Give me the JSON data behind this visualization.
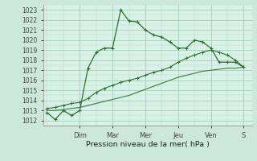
{
  "bg_color": "#cce8dc",
  "plot_bg": "#d8f2e8",
  "grid_color": "#aad4be",
  "line_color1": "#2d6e2d",
  "line_color2": "#2d6e2d",
  "line_color3": "#3a7a3a",
  "title": "Pression niveau de la mer( hPa )",
  "x_ticks_labels": [
    "Dim",
    "Mar",
    "Mer",
    "Jeu",
    "Ven",
    "S"
  ],
  "x_ticks_pos": [
    2.0,
    4.0,
    6.0,
    8.0,
    10.0,
    12.0
  ],
  "ylabel_values": [
    1012,
    1013,
    1014,
    1015,
    1016,
    1017,
    1018,
    1019,
    1020,
    1021,
    1022,
    1023
  ],
  "series1_x": [
    0.0,
    0.5,
    1.0,
    1.5,
    2.0,
    2.5,
    3.0,
    3.5,
    4.0,
    4.5,
    5.0,
    5.5,
    6.0,
    6.5,
    7.0,
    7.5,
    8.0,
    8.5,
    9.0,
    9.5,
    10.0,
    10.5,
    11.0,
    11.5,
    12.0
  ],
  "series1_y": [
    1012.8,
    1012.1,
    1013.0,
    1012.5,
    1013.0,
    1017.2,
    1018.8,
    1019.2,
    1019.2,
    1023.0,
    1021.9,
    1021.8,
    1021.0,
    1020.5,
    1020.3,
    1019.8,
    1019.2,
    1019.2,
    1020.0,
    1019.8,
    1019.2,
    1017.8,
    1017.8,
    1017.8,
    1017.3
  ],
  "series2_x": [
    0.0,
    0.5,
    1.0,
    1.5,
    2.0,
    2.5,
    3.0,
    3.5,
    4.0,
    4.5,
    5.0,
    5.5,
    6.0,
    6.5,
    7.0,
    7.5,
    8.0,
    8.5,
    9.0,
    9.5,
    10.0,
    10.5,
    11.0,
    11.5,
    12.0
  ],
  "series2_y": [
    1013.2,
    1013.3,
    1013.5,
    1013.7,
    1013.8,
    1014.2,
    1014.8,
    1015.2,
    1015.5,
    1015.8,
    1016.0,
    1016.2,
    1016.5,
    1016.8,
    1017.0,
    1017.3,
    1017.8,
    1018.2,
    1018.5,
    1018.8,
    1019.0,
    1018.8,
    1018.5,
    1018.0,
    1017.3
  ],
  "series3_x": [
    0.0,
    0.5,
    1.0,
    1.5,
    2.0,
    2.5,
    3.0,
    3.5,
    4.0,
    4.5,
    5.0,
    5.5,
    6.0,
    6.5,
    7.0,
    7.5,
    8.0,
    8.5,
    9.0,
    9.5,
    10.0,
    10.5,
    11.0,
    11.5,
    12.0
  ],
  "series3_y": [
    1013.0,
    1013.0,
    1013.1,
    1013.2,
    1013.3,
    1013.5,
    1013.7,
    1013.9,
    1014.1,
    1014.3,
    1014.5,
    1014.8,
    1015.1,
    1015.4,
    1015.7,
    1016.0,
    1016.3,
    1016.5,
    1016.7,
    1016.9,
    1017.0,
    1017.1,
    1017.2,
    1017.2,
    1017.3
  ],
  "ylim": [
    1011.5,
    1023.5
  ],
  "xlim": [
    -0.2,
    12.5
  ]
}
